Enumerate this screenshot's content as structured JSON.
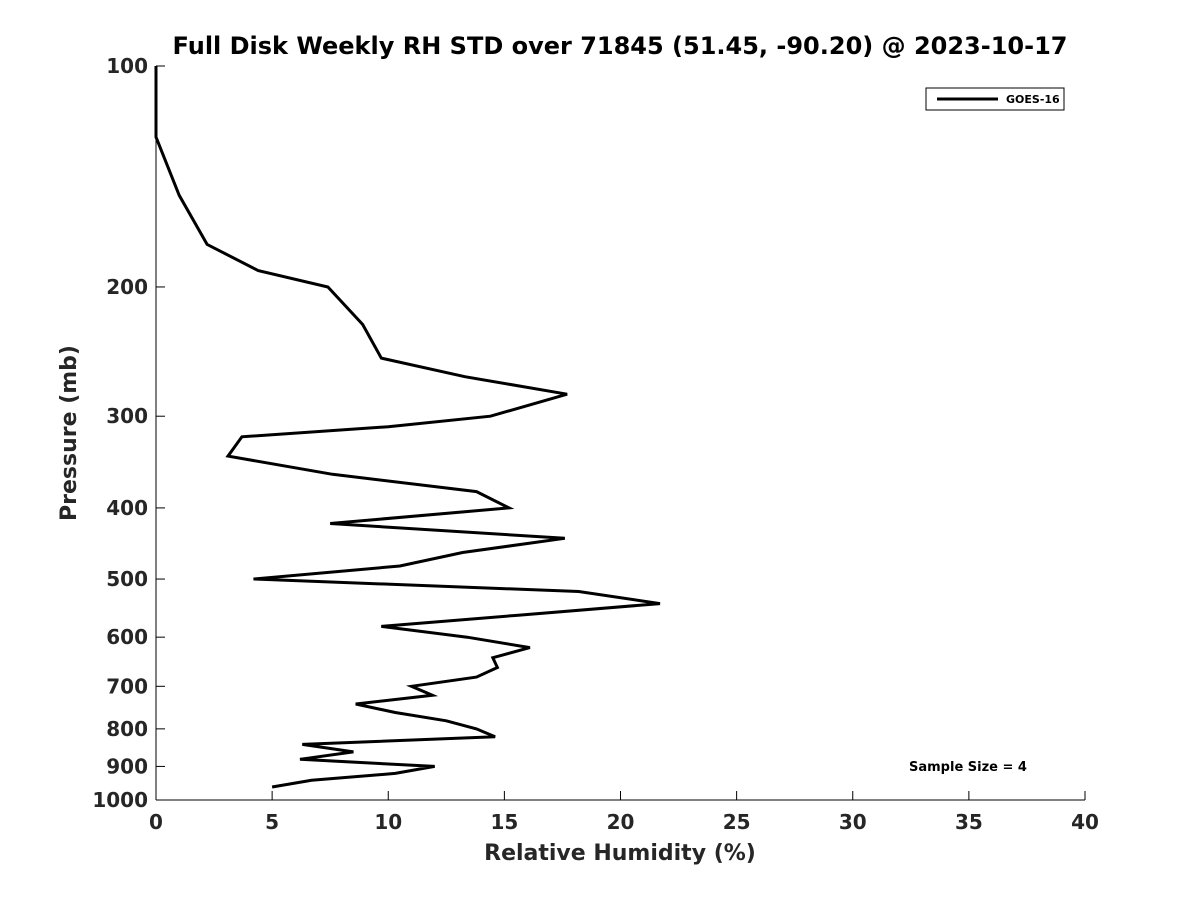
{
  "chart_data": {
    "type": "line",
    "title": "Full Disk Weekly RH STD over 71845 (51.45, -90.20) @ 2023-10-17",
    "xlabel": "Relative Humidity (%)",
    "ylabel": "Pressure (mb)",
    "xlim": [
      0,
      40
    ],
    "ylim": [
      1000,
      100
    ],
    "yscale": "log",
    "y_reversed": true,
    "x_ticks": [
      0,
      5,
      10,
      15,
      20,
      25,
      30,
      35,
      40
    ],
    "y_ticks": [
      100,
      200,
      300,
      400,
      500,
      600,
      700,
      800,
      900,
      1000
    ],
    "grid": false,
    "legend_position": "top-right",
    "series": [
      {
        "name": "GOES-16",
        "color": "#000000",
        "points": [
          [
            0.0,
            100
          ],
          [
            0.0,
            125
          ],
          [
            1.0,
            150
          ],
          [
            2.2,
            175
          ],
          [
            4.4,
            190
          ],
          [
            7.4,
            200
          ],
          [
            8.9,
            225
          ],
          [
            9.7,
            250
          ],
          [
            13.3,
            265
          ],
          [
            17.7,
            280
          ],
          [
            14.4,
            300
          ],
          [
            10.0,
            310
          ],
          [
            3.7,
            320
          ],
          [
            3.1,
            340
          ],
          [
            7.6,
            360
          ],
          [
            13.8,
            380
          ],
          [
            15.2,
            400
          ],
          [
            7.5,
            420
          ],
          [
            17.6,
            440
          ],
          [
            13.2,
            460
          ],
          [
            10.5,
            480
          ],
          [
            4.2,
            500
          ],
          [
            18.2,
            520
          ],
          [
            21.7,
            540
          ],
          [
            15.6,
            560
          ],
          [
            9.7,
            580
          ],
          [
            13.4,
            600
          ],
          [
            16.1,
            620
          ],
          [
            14.5,
            640
          ],
          [
            14.7,
            660
          ],
          [
            13.8,
            680
          ],
          [
            11.0,
            700
          ],
          [
            11.9,
            720
          ],
          [
            8.6,
            740
          ],
          [
            10.3,
            760
          ],
          [
            12.5,
            780
          ],
          [
            13.8,
            800
          ],
          [
            14.6,
            820
          ],
          [
            6.3,
            840
          ],
          [
            8.5,
            860
          ],
          [
            6.2,
            880
          ],
          [
            12.0,
            900
          ],
          [
            10.3,
            920
          ],
          [
            6.7,
            940
          ],
          [
            5.0,
            960
          ]
        ]
      }
    ],
    "annotations": [
      "Sample Size = 4"
    ]
  }
}
